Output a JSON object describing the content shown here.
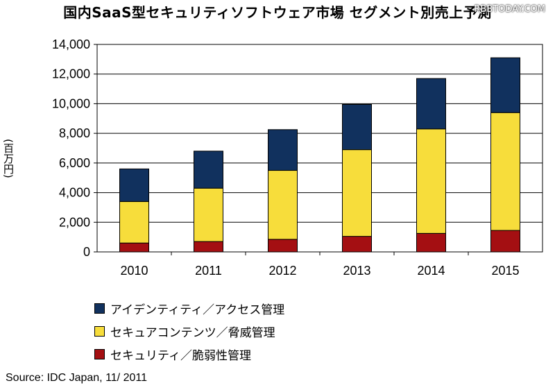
{
  "header": {
    "title": "国内SaaS型セキュリティソフトウェア市場 セグメント別売上予測",
    "watermark": "RBBTODAY.COM"
  },
  "footer": {
    "source": "Source: IDC Japan, 11/ 2011"
  },
  "chart_data": {
    "type": "bar",
    "stacked": true,
    "title": "国内SaaS型セキュリティソフトウェア市場 セグメント別売上予測",
    "xlabel": "",
    "ylabel": "(百万円)",
    "categories": [
      "2010",
      "2011",
      "2012",
      "2013",
      "2014",
      "2015"
    ],
    "ylim": [
      0,
      14000
    ],
    "yticks": [
      "0",
      "2,000",
      "4,000",
      "6,000",
      "8,000",
      "10,000",
      "12,000",
      "14,000"
    ],
    "ytick_values": [
      0,
      2000,
      4000,
      6000,
      8000,
      10000,
      12000,
      14000
    ],
    "grid": true,
    "legend_position": "bottom-left",
    "series": [
      {
        "name": "セキュリティ／脆弱性管理",
        "color": "#a40f12",
        "values": [
          600,
          700,
          850,
          1050,
          1250,
          1450
        ]
      },
      {
        "name": "セキュアコンテンツ／脅威管理",
        "color": "#f7dd3b",
        "values": [
          2800,
          3600,
          4650,
          5850,
          7050,
          7950
        ]
      },
      {
        "name": "アイデンティティ／アクセス管理",
        "color": "#11315e",
        "values": [
          2200,
          2500,
          2750,
          3050,
          3400,
          3700
        ]
      }
    ]
  }
}
